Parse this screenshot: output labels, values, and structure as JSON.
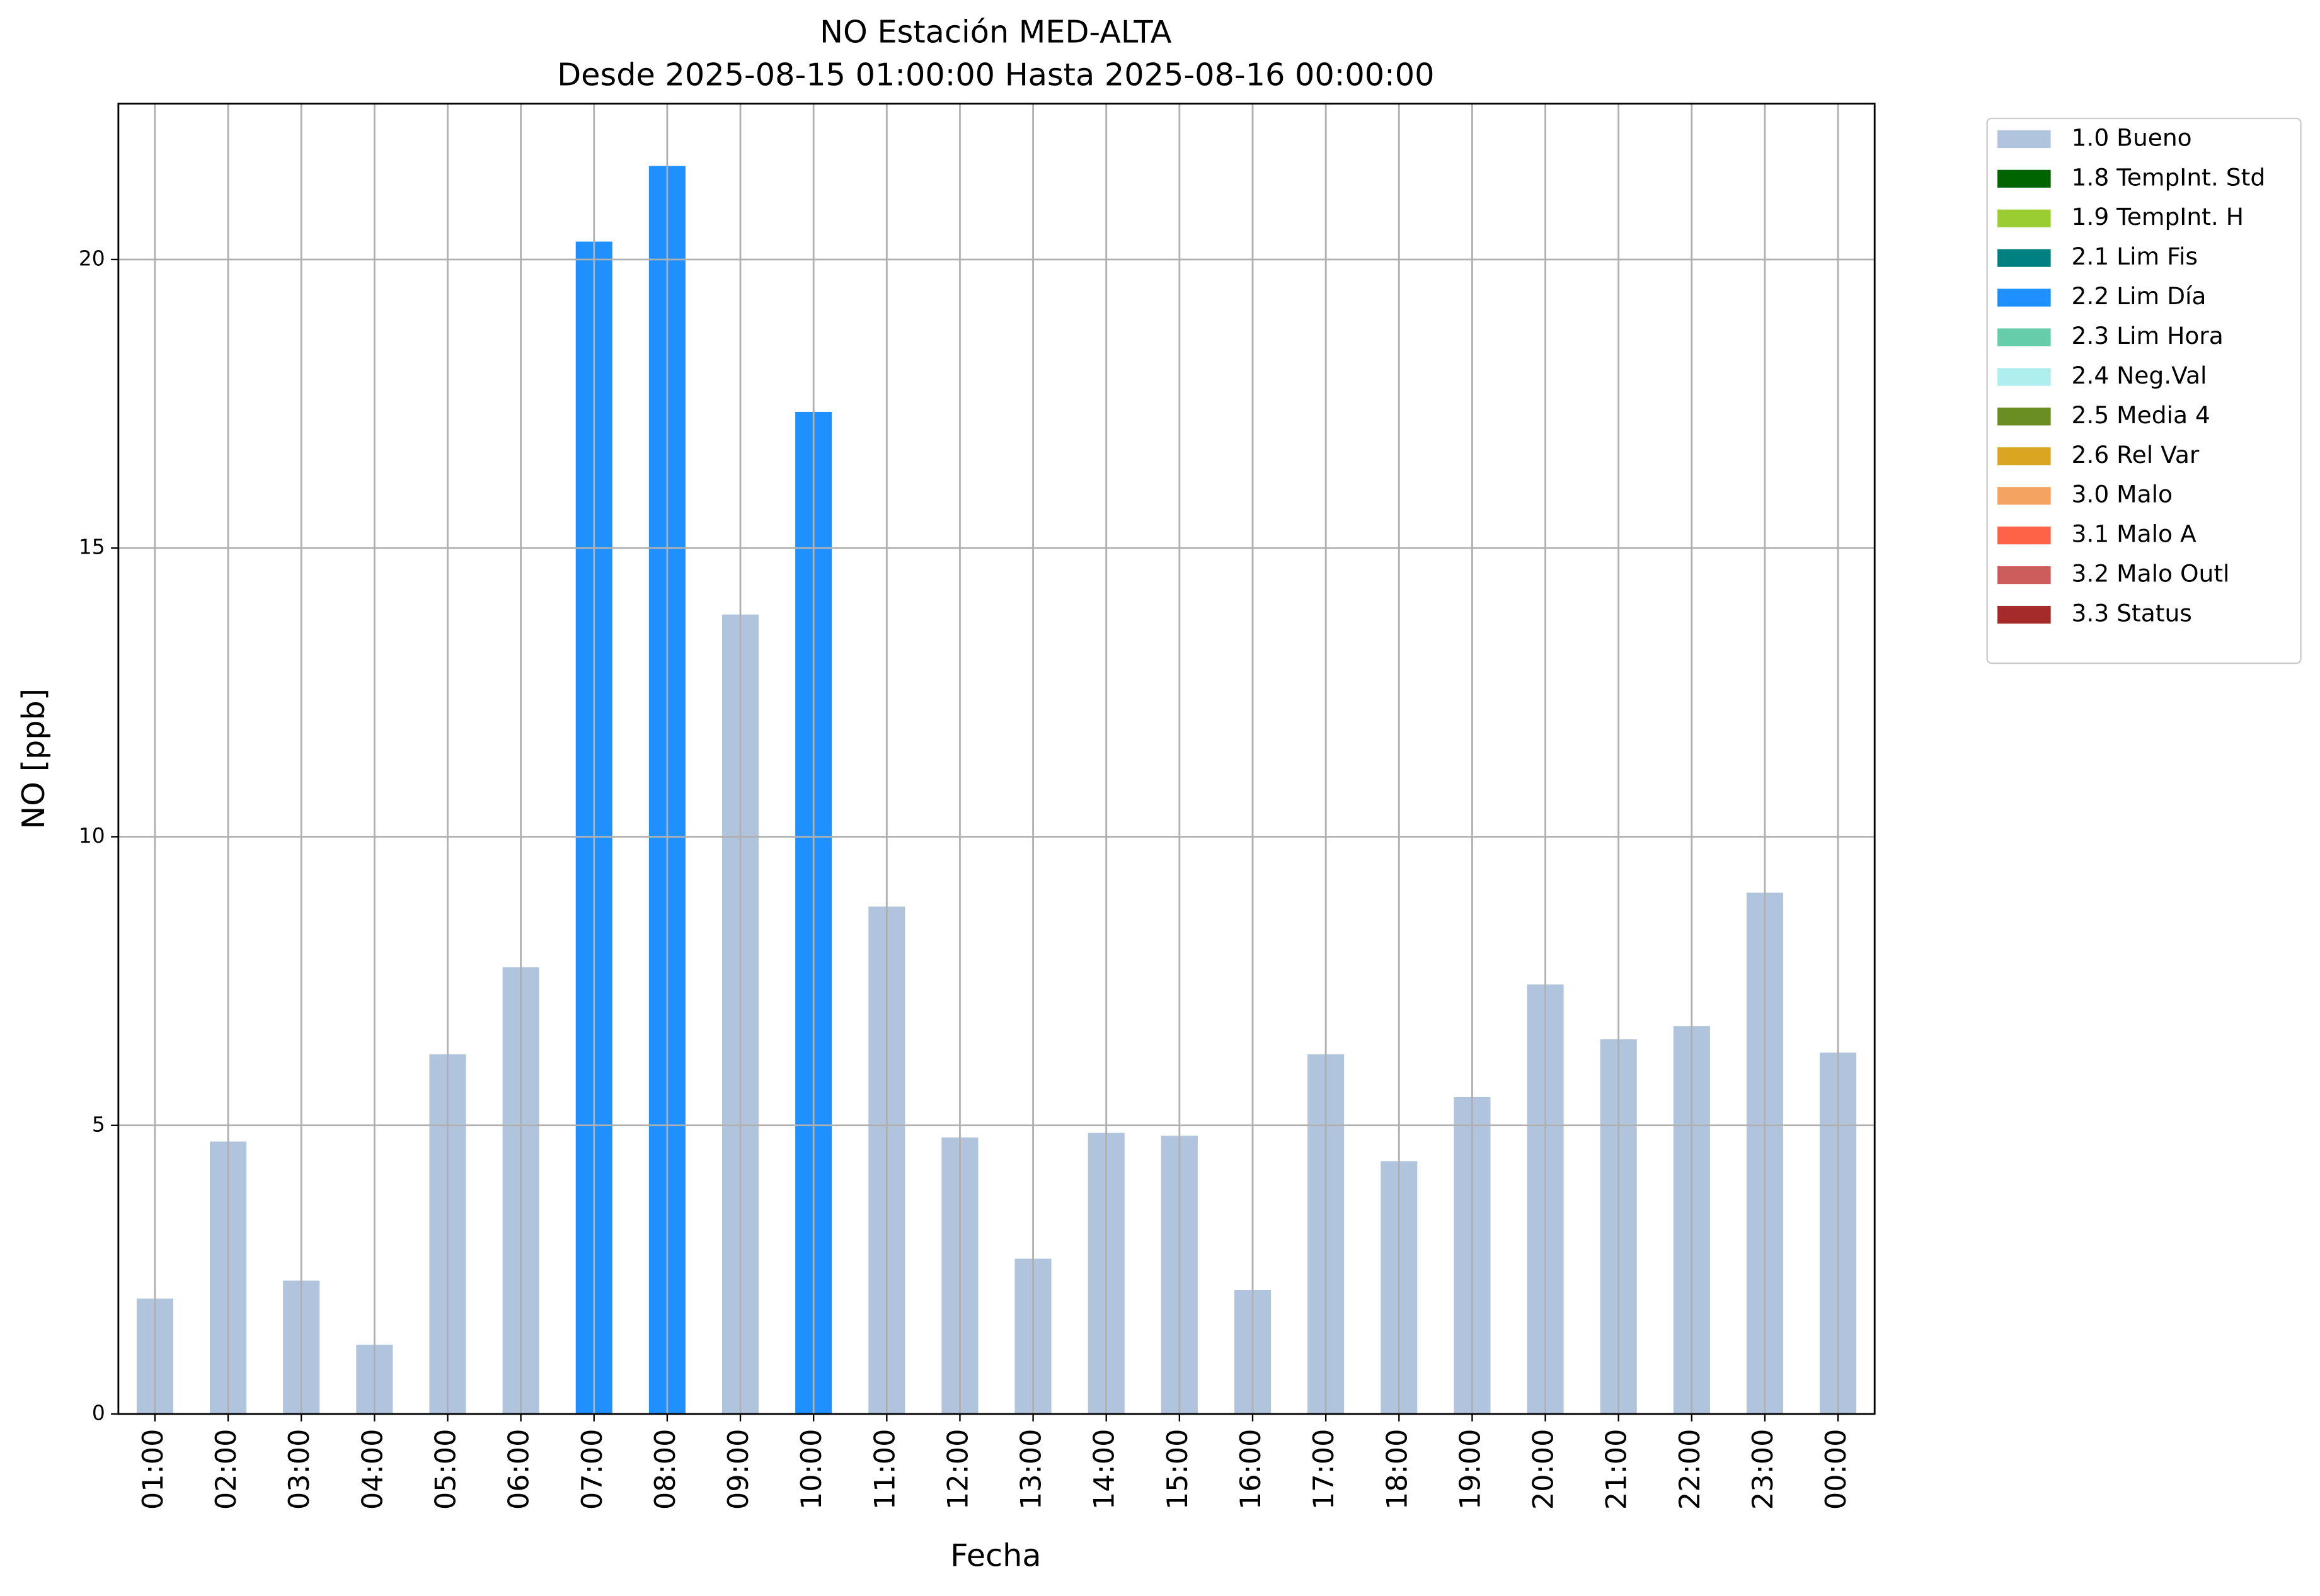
{
  "chart_data": {
    "type": "stacked-bar",
    "title": "NO Estación MED-ALTA",
    "subtitle": "Desde 2025-08-15 01:00:00 Hasta 2025-08-16 00:00:00",
    "x_label": "Fecha",
    "y_label": "NO [ppb]",
    "grid": true,
    "categories": [
      "01:00",
      "02:00",
      "03:00",
      "04:00",
      "05:00",
      "06:00",
      "07:00",
      "08:00",
      "09:00",
      "10:00",
      "11:00",
      "12:00",
      "13:00",
      "14:00",
      "15:00",
      "16:00",
      "17:00",
      "18:00",
      "19:00",
      "20:00",
      "21:00",
      "22:00",
      "23:00",
      "00:00"
    ],
    "ylim": [
      0,
      22.7
    ],
    "yticks": [
      0,
      5,
      10,
      15,
      20
    ],
    "series": [
      {
        "name": "1.0 Bueno",
        "color": "#b0c4de",
        "values": [
          2.0,
          4.72,
          2.31,
          1.2,
          6.23,
          7.74,
          null,
          null,
          13.85,
          null,
          8.79,
          4.79,
          2.69,
          4.87,
          4.82,
          2.15,
          6.23,
          4.38,
          5.49,
          7.44,
          6.49,
          6.72,
          9.03,
          6.26
        ]
      },
      {
        "name": "1.8 TempInt. Std",
        "color": "#006400",
        "values": [
          null,
          null,
          null,
          null,
          null,
          null,
          null,
          null,
          null,
          null,
          null,
          null,
          null,
          null,
          null,
          null,
          null,
          null,
          null,
          null,
          null,
          null,
          null,
          null
        ]
      },
      {
        "name": "1.9 TempInt. H",
        "color": "#9acd32",
        "values": [
          null,
          null,
          null,
          null,
          null,
          null,
          null,
          null,
          null,
          null,
          null,
          null,
          null,
          null,
          null,
          null,
          null,
          null,
          null,
          null,
          null,
          null,
          null,
          null
        ]
      },
      {
        "name": "2.1 Lim Fis",
        "color": "#008080",
        "values": [
          null,
          null,
          null,
          null,
          null,
          null,
          null,
          null,
          null,
          null,
          null,
          null,
          null,
          null,
          null,
          null,
          null,
          null,
          null,
          null,
          null,
          null,
          null,
          null
        ]
      },
      {
        "name": "2.2 Lim Día",
        "color": "#1e90ff",
        "values": [
          null,
          null,
          null,
          null,
          null,
          null,
          20.31,
          21.62,
          null,
          17.36,
          null,
          null,
          null,
          null,
          null,
          null,
          null,
          null,
          null,
          null,
          null,
          null,
          null,
          null
        ]
      },
      {
        "name": "2.3 Lim Hora",
        "color": "#66cdaa",
        "values": [
          null,
          null,
          null,
          null,
          null,
          null,
          null,
          null,
          null,
          null,
          null,
          null,
          null,
          null,
          null,
          null,
          null,
          null,
          null,
          null,
          null,
          null,
          null,
          null
        ]
      },
      {
        "name": "2.4 Neg.Val",
        "color": "#afeeee",
        "values": [
          null,
          null,
          null,
          null,
          null,
          null,
          null,
          null,
          null,
          null,
          null,
          null,
          null,
          null,
          null,
          null,
          null,
          null,
          null,
          null,
          null,
          null,
          null,
          null
        ]
      },
      {
        "name": "2.5 Media 4",
        "color": "#6b8e23",
        "values": [
          null,
          null,
          null,
          null,
          null,
          null,
          null,
          null,
          null,
          null,
          null,
          null,
          null,
          null,
          null,
          null,
          null,
          null,
          null,
          null,
          null,
          null,
          null,
          null
        ]
      },
      {
        "name": "2.6 Rel Var",
        "color": "#daa520",
        "values": [
          null,
          null,
          null,
          null,
          null,
          null,
          null,
          null,
          null,
          null,
          null,
          null,
          null,
          null,
          null,
          null,
          null,
          null,
          null,
          null,
          null,
          null,
          null,
          null
        ]
      },
      {
        "name": "3.0 Malo",
        "color": "#f4a460",
        "values": [
          null,
          null,
          null,
          null,
          null,
          null,
          null,
          null,
          null,
          null,
          null,
          null,
          null,
          null,
          null,
          null,
          null,
          null,
          null,
          null,
          null,
          null,
          null,
          null
        ]
      },
      {
        "name": "3.1 Malo A",
        "color": "#ff6347",
        "values": [
          null,
          null,
          null,
          null,
          null,
          null,
          null,
          null,
          null,
          null,
          null,
          null,
          null,
          null,
          null,
          null,
          null,
          null,
          null,
          null,
          null,
          null,
          null,
          null
        ]
      },
      {
        "name": "3.2 Malo Outl",
        "color": "#cd5c5c",
        "values": [
          null,
          null,
          null,
          null,
          null,
          null,
          null,
          null,
          null,
          null,
          null,
          null,
          null,
          null,
          null,
          null,
          null,
          null,
          null,
          null,
          null,
          null,
          null,
          null
        ]
      },
      {
        "name": "3.3 Status",
        "color": "#a52a2a",
        "values": [
          null,
          null,
          null,
          null,
          null,
          null,
          null,
          null,
          null,
          null,
          null,
          null,
          null,
          null,
          null,
          null,
          null,
          null,
          null,
          null,
          null,
          null,
          null,
          null
        ]
      }
    ]
  }
}
